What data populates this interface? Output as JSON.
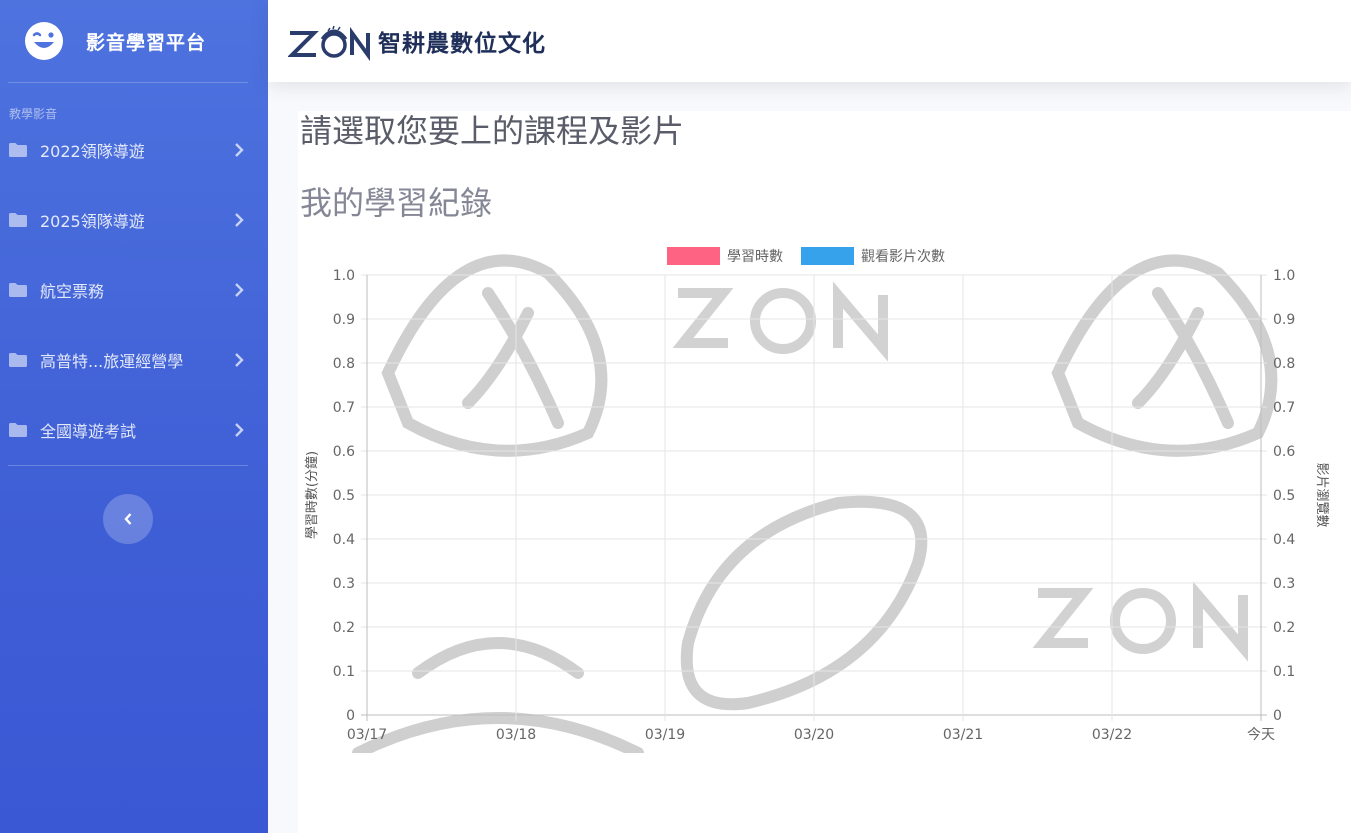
{
  "sidebar": {
    "brand": "影音學習平台",
    "heading": "教學影音",
    "items": [
      {
        "label": "2022領隊導遊"
      },
      {
        "label": "2025領隊導遊"
      },
      {
        "label": "航空票務"
      },
      {
        "label": "高普特...旅運經營學"
      },
      {
        "label": "全國導遊考試"
      }
    ]
  },
  "topbar": {
    "logo_letters": "ZON",
    "logo_text": "智耕農數位文化"
  },
  "main": {
    "title": "請選取您要上的課程及影片",
    "section_title": "我的學習紀錄"
  },
  "colors": {
    "sidebar": "#4e73df",
    "series_1": "#ff6384",
    "series_2": "#36a2eb"
  },
  "chart_data": {
    "type": "line",
    "categories": [
      "03/17",
      "03/18",
      "03/19",
      "03/20",
      "03/21",
      "03/22",
      "今天"
    ],
    "series": [
      {
        "name": "學習時數",
        "values": [
          0,
          0,
          0,
          0,
          0,
          0,
          0
        ],
        "color": "#ff6384"
      },
      {
        "name": "觀看影片次數",
        "values": [
          0,
          0,
          0,
          0,
          0,
          0,
          0
        ],
        "color": "#36a2eb"
      }
    ],
    "ylabel": "學習時數(分鐘)",
    "y2label": "影片瀏覽數",
    "ylim": [
      0,
      1
    ],
    "y_ticks": [
      "0",
      "0.1",
      "0.2",
      "0.3",
      "0.4",
      "0.5",
      "0.6",
      "0.7",
      "0.8",
      "0.9",
      "1.0"
    ],
    "grid": true,
    "legend": "top"
  }
}
